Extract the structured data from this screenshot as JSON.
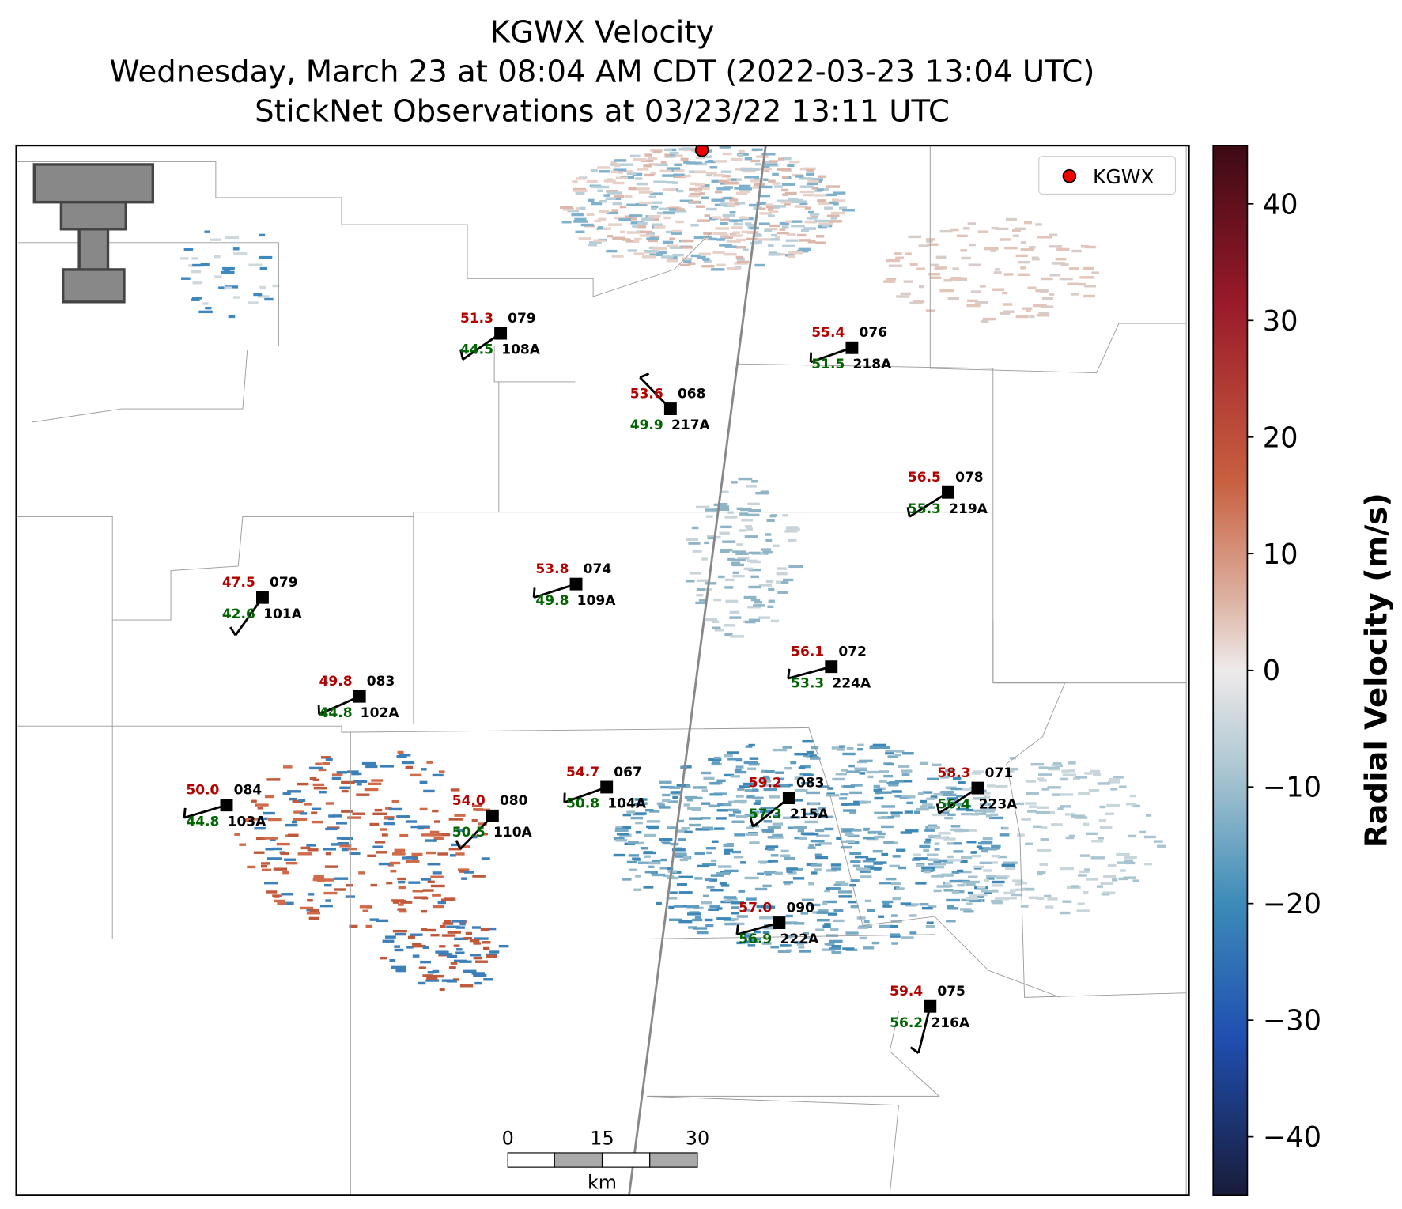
{
  "title": "KGWX Velocity",
  "subtitle": "Wednesday, March 23 at 08:04 AM CDT (2022-03-23 13:04 UTC)",
  "subtitle2": "StickNet Observations at 03/23/22 13:11 UTC",
  "legend": {
    "label": "KGWX"
  },
  "colorbar": {
    "label": "Radial Velocity (m/s)",
    "range": [
      -45,
      45
    ],
    "ticks": [
      {
        "value": 40,
        "label": "40"
      },
      {
        "value": 30,
        "label": "30"
      },
      {
        "value": 20,
        "label": "20"
      },
      {
        "value": 10,
        "label": "10"
      },
      {
        "value": 0,
        "label": "0"
      },
      {
        "value": -10,
        "label": "−10"
      },
      {
        "value": -20,
        "label": "−20"
      },
      {
        "value": -30,
        "label": "−30"
      },
      {
        "value": -40,
        "label": "−40"
      }
    ]
  },
  "scale_bar": {
    "ticks": [
      "0",
      "15",
      "30"
    ],
    "unit": "km"
  },
  "stations": [
    {
      "temp": "51.3",
      "dew": "44.5",
      "code": "079",
      "id": "108A"
    },
    {
      "temp": "55.4",
      "dew": "51.5",
      "code": "076",
      "id": "218A"
    },
    {
      "temp": "53.6",
      "dew": "49.9",
      "code": "068",
      "id": "217A"
    },
    {
      "temp": "56.5",
      "dew": "55.3",
      "code": "078",
      "id": "219A"
    },
    {
      "temp": "47.5",
      "dew": "42.6",
      "code": "079",
      "id": "101A"
    },
    {
      "temp": "53.8",
      "dew": "49.8",
      "code": "074",
      "id": "109A"
    },
    {
      "temp": "56.1",
      "dew": "53.3",
      "code": "072",
      "id": "224A"
    },
    {
      "temp": "49.8",
      "dew": "44.8",
      "code": "083",
      "id": "102A"
    },
    {
      "temp": "50.0",
      "dew": "44.8",
      "code": "084",
      "id": "103A"
    },
    {
      "temp": "54.7",
      "dew": "50.8",
      "code": "067",
      "id": "104A"
    },
    {
      "temp": "54.0",
      "dew": "50.5",
      "code": "080",
      "id": "110A"
    },
    {
      "temp": "59.2",
      "dew": "57.3",
      "code": "083",
      "id": "215A"
    },
    {
      "temp": "58.3",
      "dew": "56.4",
      "code": "071",
      "id": "223A"
    },
    {
      "temp": "57.0",
      "dew": "56.9",
      "code": "090",
      "id": "222A"
    },
    {
      "temp": "59.4",
      "dew": "56.2",
      "code": "075",
      "id": "216A"
    }
  ]
}
